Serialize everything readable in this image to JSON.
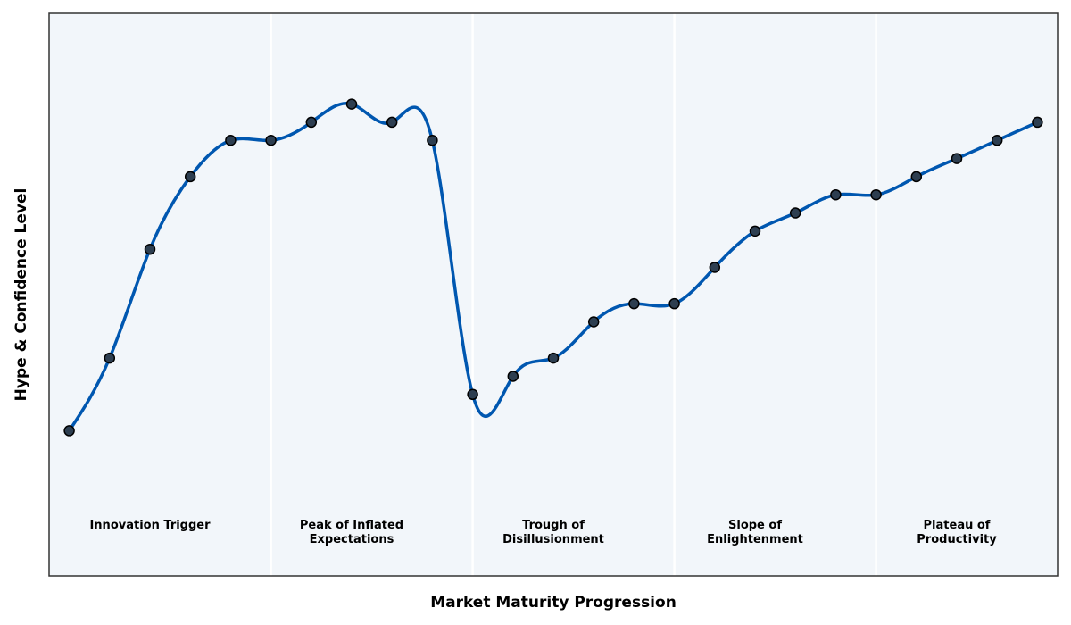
{
  "chart_data": {
    "type": "line",
    "x_label": "Market Maturity Progression",
    "y_label": "Hype & Confidence Level",
    "x": [
      0,
      1,
      2,
      3,
      4,
      5,
      6,
      7,
      8,
      9,
      10,
      11,
      12,
      13,
      14,
      15,
      16,
      17,
      18,
      19,
      20,
      21,
      22,
      23,
      24
    ],
    "series": [
      {
        "color": "#0057b0",
        "marker_color": "#2d3e50",
        "values": [
          10,
          30,
          60,
          80,
          90,
          90,
          95,
          100,
          95,
          90,
          20,
          25,
          30,
          40,
          45,
          45,
          55,
          65,
          70,
          75,
          75,
          80,
          85,
          90,
          95
        ]
      }
    ],
    "xlim": [
      -0.5,
      24.5
    ],
    "ylim": [
      -30,
      125
    ],
    "phase_boundaries": [
      5,
      10,
      15,
      20
    ],
    "phase_label_y": -16,
    "phases": [
      {
        "x": 2,
        "lines": [
          "Innovation Trigger"
        ]
      },
      {
        "x": 7,
        "lines": [
          "Peak of Inflated",
          "Expectations"
        ]
      },
      {
        "x": 12,
        "lines": [
          "Trough of",
          "Disillusionment"
        ]
      },
      {
        "x": 17,
        "lines": [
          "Slope of",
          "Enlightenment"
        ]
      },
      {
        "x": 22,
        "lines": [
          "Plateau of",
          "Productivity"
        ]
      }
    ],
    "background": "#f2f6fa"
  }
}
